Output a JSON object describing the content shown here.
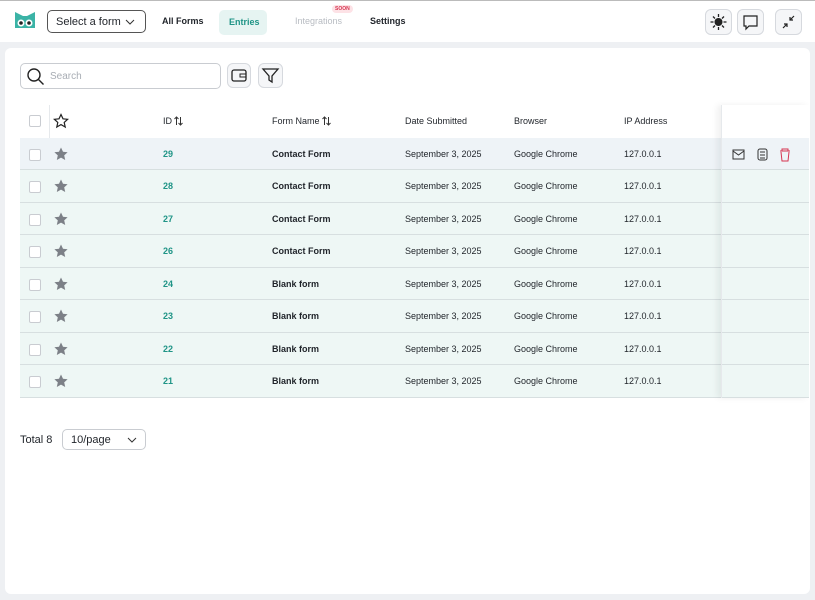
{
  "nav": {
    "form_select": "Select a form",
    "tabs": [
      "All Forms",
      "Entries",
      "Integrations",
      "Settings"
    ],
    "badge": "SOON"
  },
  "toolbar": {
    "search_placeholder": "Search"
  },
  "table": {
    "headers": [
      "ID",
      "Form Name",
      "Date Submitted",
      "Browser",
      "IP Address"
    ],
    "rows": [
      [
        29,
        "Contact Form",
        "September 3, 2025",
        "Google Chrome",
        "127.0.0.1"
      ],
      [
        28,
        "Contact Form",
        "September 3, 2025",
        "Google Chrome",
        "127.0.0.1"
      ],
      [
        27,
        "Contact Form",
        "September 3, 2025",
        "Google Chrome",
        "127.0.0.1"
      ],
      [
        26,
        "Contact Form",
        "September 3, 2025",
        "Google Chrome",
        "127.0.0.1"
      ],
      [
        24,
        "Blank form",
        "September 3, 2025",
        "Google Chrome",
        "127.0.0.1"
      ],
      [
        23,
        "Blank form",
        "September 3, 2025",
        "Google Chrome",
        "127.0.0.1"
      ],
      [
        22,
        "Blank form",
        "September 3, 2025",
        "Google Chrome",
        "127.0.0.1"
      ],
      [
        21,
        "Blank form",
        "September 3, 2025",
        "Google Chrome",
        "127.0.0.1"
      ]
    ]
  },
  "pagination": {
    "total": "Total 8",
    "page_size": "10/page"
  }
}
